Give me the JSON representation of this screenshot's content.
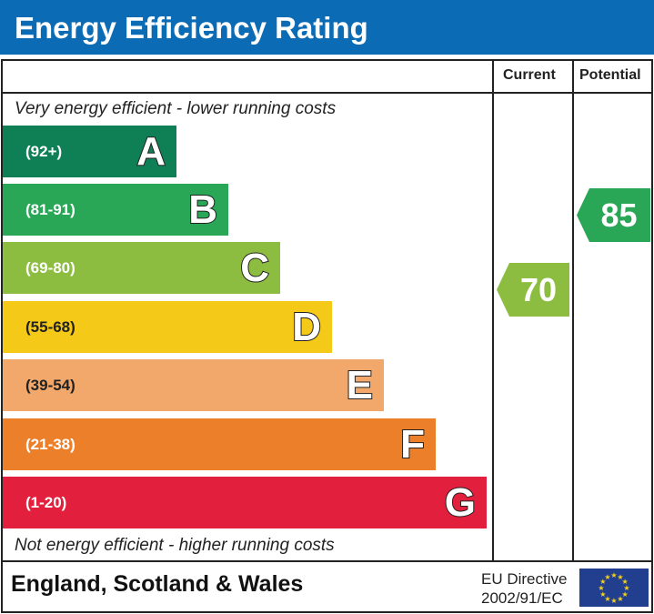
{
  "title": "Energy Efficiency Rating",
  "chart_data": {
    "type": "bar",
    "title": "Energy Efficiency Rating",
    "columns": [
      "Current",
      "Potential"
    ],
    "top_note": "Very energy efficient - lower running costs",
    "bottom_note": "Not energy efficient - higher running costs",
    "bands": [
      {
        "letter": "A",
        "range": "(92+)",
        "color": "#0f7f55"
      },
      {
        "letter": "B",
        "range": "(81-91)",
        "color": "#2aa657"
      },
      {
        "letter": "C",
        "range": "(69-80)",
        "color": "#8dbd40"
      },
      {
        "letter": "D",
        "range": "(55-68)",
        "color": "#f5c918"
      },
      {
        "letter": "E",
        "range": "(39-54)",
        "color": "#f2a86a"
      },
      {
        "letter": "F",
        "range": "(21-38)",
        "color": "#ec7f2a"
      },
      {
        "letter": "G",
        "range": "(1-20)",
        "color": "#e21f3c"
      }
    ],
    "current": {
      "value": 70,
      "band": "C",
      "color": "#8dbd40"
    },
    "potential": {
      "value": 85,
      "band": "B",
      "color": "#2aa657"
    }
  },
  "footer": {
    "region": "England, Scotland & Wales",
    "directive_line1": "EU Directive",
    "directive_line2": "2002/91/EC"
  }
}
